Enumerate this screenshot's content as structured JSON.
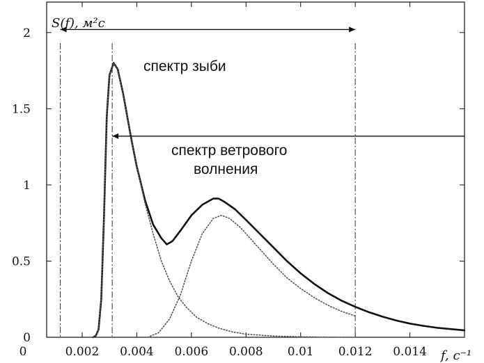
{
  "chart_data": {
    "type": "line",
    "title": "",
    "ylabel": "S(f), м²с",
    "xlabel": "f, с⁻¹",
    "xlim": [
      0,
      0.016
    ],
    "ylim": [
      0,
      2.2
    ],
    "grid": false,
    "xticks": [
      {
        "value": 0,
        "label": "0"
      },
      {
        "value": 0.002,
        "label": "0.002"
      },
      {
        "value": 0.004,
        "label": "0.004"
      },
      {
        "value": 0.006,
        "label": "0.006"
      },
      {
        "value": 0.008,
        "label": "0.008"
      },
      {
        "value": 0.01,
        "label": "0.01"
      },
      {
        "value": 0.012,
        "label": "0.012"
      },
      {
        "value": 0.014,
        "label": "0.014"
      }
    ],
    "yticks": [
      {
        "value": 0,
        "label": "0"
      },
      {
        "value": 0.5,
        "label": "0.5"
      },
      {
        "value": 1,
        "label": "1"
      },
      {
        "value": 1.5,
        "label": "1.5"
      },
      {
        "value": 2,
        "label": "2"
      }
    ],
    "series": [
      {
        "style": "solid",
        "x": [
          0.0024,
          0.0025,
          0.0026,
          0.0027,
          0.0028,
          0.0029,
          0.003,
          0.00315,
          0.0033,
          0.0035,
          0.0038,
          0.004,
          0.0043,
          0.0046,
          0.0049,
          0.0051,
          0.0053,
          0.0056,
          0.006,
          0.0064,
          0.0068,
          0.007,
          0.0072,
          0.0076,
          0.008,
          0.0085,
          0.009,
          0.0095,
          0.01,
          0.0105,
          0.011,
          0.0115,
          0.012,
          0.0125,
          0.013,
          0.0135,
          0.014,
          0.0145,
          0.015,
          0.016
        ],
        "y": [
          0.0,
          0.01,
          0.05,
          0.25,
          0.8,
          1.45,
          1.72,
          1.8,
          1.76,
          1.6,
          1.3,
          1.12,
          0.9,
          0.74,
          0.65,
          0.61,
          0.63,
          0.7,
          0.8,
          0.87,
          0.91,
          0.91,
          0.89,
          0.84,
          0.77,
          0.68,
          0.59,
          0.5,
          0.42,
          0.35,
          0.29,
          0.24,
          0.2,
          0.165,
          0.135,
          0.11,
          0.09,
          0.075,
          0.062,
          0.045
        ]
      },
      {
        "style": "dotted",
        "x": [
          0.0024,
          0.0025,
          0.0026,
          0.0027,
          0.0028,
          0.0029,
          0.003,
          0.00315,
          0.0033,
          0.0035,
          0.0038,
          0.004,
          0.0043,
          0.0046,
          0.0049,
          0.0052,
          0.0055,
          0.0058,
          0.0062,
          0.0066,
          0.007,
          0.0075,
          0.008,
          0.009,
          0.01,
          0.011,
          0.012
        ],
        "y": [
          0.0,
          0.01,
          0.05,
          0.25,
          0.8,
          1.45,
          1.72,
          1.8,
          1.76,
          1.6,
          1.3,
          1.12,
          0.88,
          0.68,
          0.5,
          0.37,
          0.27,
          0.2,
          0.13,
          0.09,
          0.06,
          0.035,
          0.02,
          0.008,
          0.003,
          0.001,
          0.0
        ]
      },
      {
        "style": "dotted",
        "x": [
          0.0044,
          0.0048,
          0.0052,
          0.0056,
          0.006,
          0.0064,
          0.0068,
          0.0071,
          0.0074,
          0.0078,
          0.0082,
          0.0086,
          0.009,
          0.0095,
          0.01,
          0.0105,
          0.011,
          0.0115,
          0.012
        ],
        "y": [
          0.0,
          0.03,
          0.12,
          0.28,
          0.5,
          0.68,
          0.78,
          0.8,
          0.78,
          0.72,
          0.64,
          0.56,
          0.48,
          0.39,
          0.32,
          0.26,
          0.21,
          0.17,
          0.14
        ]
      }
    ],
    "vlines": [
      0.0012,
      0.0031,
      0.012
    ],
    "annotations": [
      {
        "text": "спектр зыби",
        "arrow_from": 0.0012,
        "arrow_to": 0.012,
        "arrow_y": 2.02
      },
      {
        "text": "спектр ветрового",
        "arrow_from": 0.0031,
        "arrow_to": 0.016,
        "arrow_y": 1.32
      },
      {
        "text": "волнения"
      }
    ]
  }
}
